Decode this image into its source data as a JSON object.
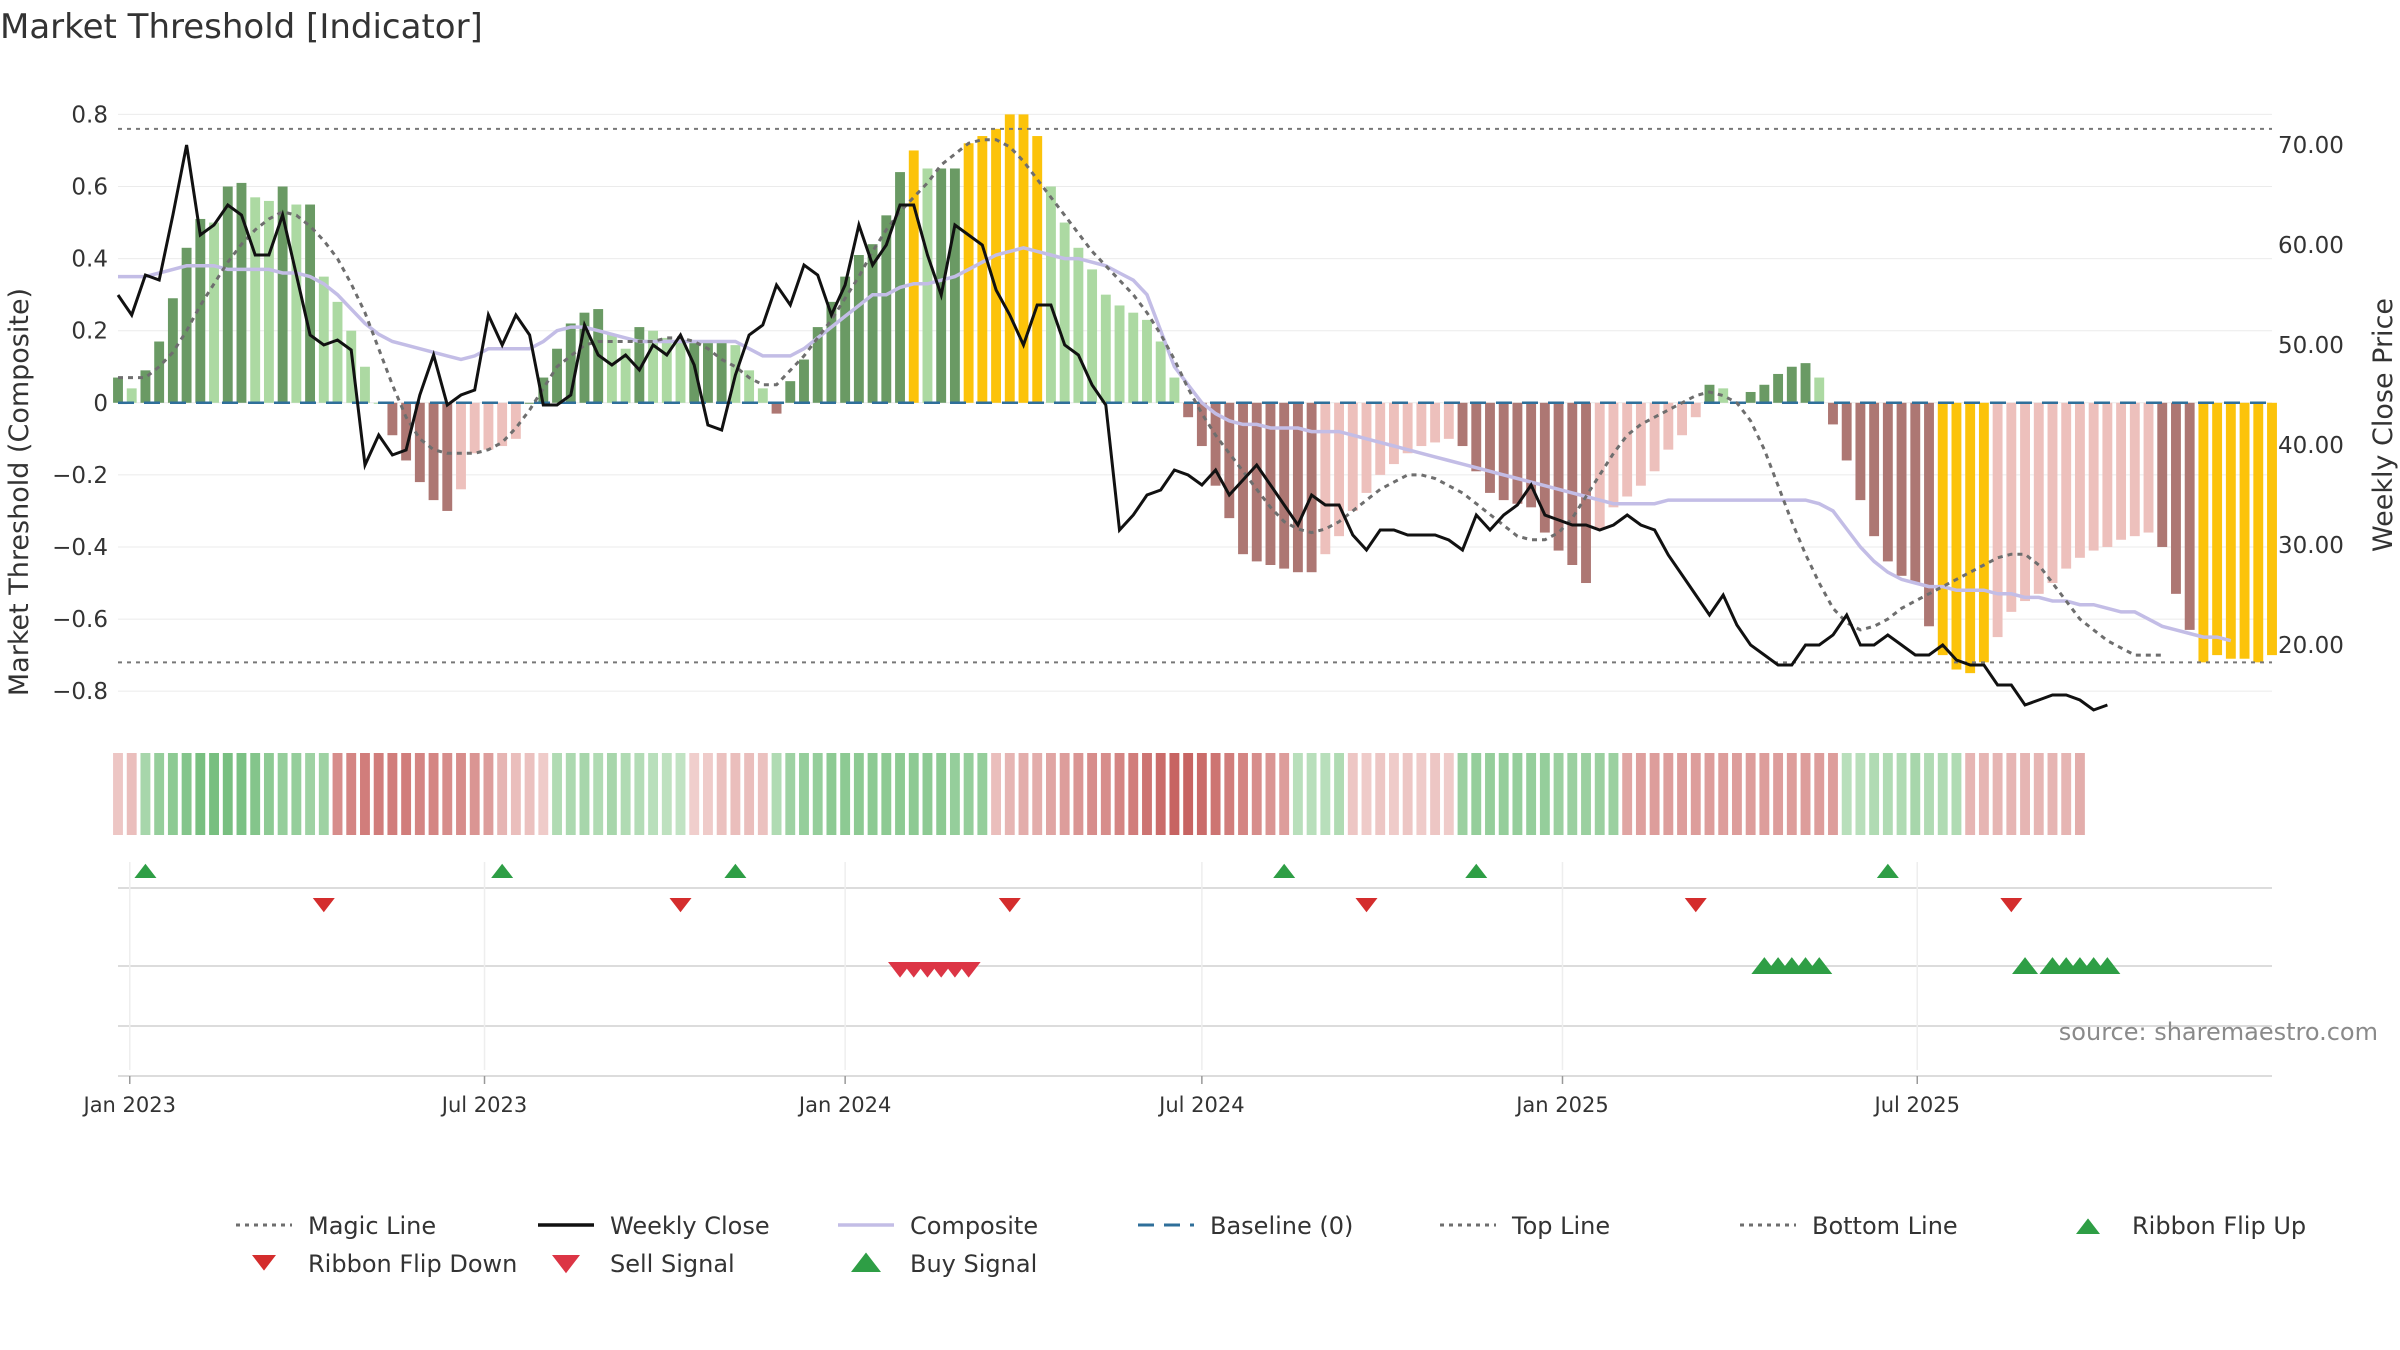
{
  "title": "Market Threshold [Indicator]",
  "source": "source: sharemaestro.com",
  "colors": {
    "bar_strong_green": "#6a9a64",
    "bar_light_green": "#acd9a2",
    "bar_strong_red": "#ad7773",
    "bar_light_red": "#edc0bc",
    "bar_extreme": "#fcc30a",
    "close_line": "#111111",
    "composite_line": "#c3bde6",
    "magic_line": "#6e6e6e",
    "baseline": "#2f6f9a",
    "buy": "#2e9e45",
    "sell": "#dc3545"
  },
  "legend": [
    {
      "label": "Magic Line",
      "icon": "dotted-line"
    },
    {
      "label": "Weekly Close",
      "icon": "solid-line"
    },
    {
      "label": "Composite",
      "icon": "lavender-line"
    },
    {
      "label": "Baseline (0)",
      "icon": "dashed-line"
    },
    {
      "label": "Top Line",
      "icon": "dotted-line"
    },
    {
      "label": "Bottom Line",
      "icon": "dotted-line"
    },
    {
      "label": "Ribbon Flip Up",
      "icon": "triangle-up-icon"
    },
    {
      "label": "Ribbon Flip Down",
      "icon": "triangle-down-icon"
    },
    {
      "label": "Sell Signal",
      "icon": "triangle-down-icon"
    },
    {
      "label": "Buy Signal",
      "icon": "triangle-up-icon"
    }
  ],
  "chart_data": {
    "type": "bar",
    "x_start": "2022-12-26",
    "x_step_days": 7,
    "x_ticks": [
      "Jan 2023",
      "Jul 2023",
      "Jan 2024",
      "Jul 2024",
      "Jan 2025",
      "Jul 2025"
    ],
    "x_tick_dates": [
      "2023-01-01",
      "2023-07-01",
      "2024-01-01",
      "2024-07-01",
      "2025-01-01",
      "2025-07-01"
    ],
    "y_left": {
      "label": "Market Threshold (Composite)",
      "range": [
        -0.88,
        0.84
      ],
      "ticks": [
        0.8,
        0.6,
        0.4,
        0.2,
        0,
        -0.2,
        -0.4,
        -0.6,
        -0.8
      ],
      "tick_labels": [
        "0.8",
        "0.6",
        "0.4",
        "0.2",
        "0",
        "−0.2",
        "−0.4",
        "−0.6",
        "−0.8"
      ]
    },
    "y_right": {
      "label": "Weekly Close Price",
      "range": [
        12.5,
        74.5
      ],
      "ticks": [
        70,
        60,
        50,
        40,
        30,
        20
      ],
      "tick_labels": [
        "70.00",
        "60.00",
        "50.00",
        "40.00",
        "30.00",
        "20.00"
      ]
    },
    "top_line": 0.76,
    "bottom_line": -0.72,
    "series": [
      {
        "name": "Market Threshold",
        "values": [
          0.07,
          0.04,
          0.09,
          0.17,
          0.29,
          0.43,
          0.51,
          0.5,
          0.6,
          0.61,
          0.57,
          0.56,
          0.6,
          0.55,
          0.55,
          0.35,
          0.28,
          0.2,
          0.1,
          0,
          -0.09,
          -0.16,
          -0.22,
          -0.27,
          -0.3,
          -0.24,
          -0.14,
          -0.13,
          -0.12,
          -0.1,
          0,
          0.07,
          0.15,
          0.22,
          0.25,
          0.26,
          0.19,
          0.15,
          0.21,
          0.2,
          0.18,
          0.17,
          0.17,
          0.17,
          0.17,
          0.16,
          0.09,
          0.04,
          -0.03,
          0.06,
          0.12,
          0.21,
          0.28,
          0.35,
          0.41,
          0.44,
          0.52,
          0.64,
          0.7,
          0.65,
          0.65,
          0.65,
          0.72,
          0.74,
          0.76,
          0.8,
          0.8,
          0.74,
          0.6,
          0.5,
          0.43,
          0.37,
          0.3,
          0.27,
          0.25,
          0.23,
          0.17,
          0.07,
          -0.04,
          -0.12,
          -0.23,
          -0.32,
          -0.42,
          -0.44,
          -0.45,
          -0.46,
          -0.47,
          -0.47,
          -0.42,
          -0.37,
          -0.3,
          -0.25,
          -0.2,
          -0.17,
          -0.14,
          -0.12,
          -0.11,
          -0.1,
          -0.12,
          -0.19,
          -0.25,
          -0.27,
          -0.28,
          -0.29,
          -0.36,
          -0.41,
          -0.45,
          -0.5,
          -0.35,
          -0.29,
          -0.26,
          -0.23,
          -0.19,
          -0.13,
          -0.09,
          -0.04,
          0.05,
          0.04,
          0,
          0.03,
          0.05,
          0.08,
          0.1,
          0.11,
          0.07,
          -0.06,
          -0.16,
          -0.27,
          -0.37,
          -0.44,
          -0.48,
          -0.5,
          -0.62,
          -0.7,
          -0.74,
          -0.75,
          -0.72,
          -0.65,
          -0.58,
          -0.55,
          -0.53,
          -0.5,
          -0.46,
          -0.43,
          -0.41,
          -0.4,
          -0.38,
          -0.37,
          -0.36,
          -0.4,
          -0.53,
          -0.63,
          -0.72,
          -0.7,
          -0.71,
          -0.71,
          -0.72,
          -0.7
        ]
      },
      {
        "name": "Weekly Close",
        "values": [
          55,
          53,
          57,
          56.5,
          63,
          70,
          61,
          62,
          64,
          63,
          59,
          59,
          63,
          57,
          51,
          50,
          50.5,
          49.5,
          38,
          41,
          39,
          39.5,
          45,
          49,
          44,
          45,
          45.5,
          53,
          50,
          53,
          51,
          44,
          44,
          45,
          52,
          49,
          48,
          49,
          47.5,
          50,
          49,
          51,
          48,
          42,
          41.5,
          47,
          51,
          52,
          56,
          54,
          58,
          57,
          53,
          56,
          62,
          58,
          60,
          64,
          64,
          59,
          55,
          62,
          61,
          60,
          55.5,
          53,
          50,
          54,
          54,
          50,
          49,
          46,
          44,
          31.5,
          33,
          35,
          35.5,
          37.5,
          37,
          36,
          37.5,
          35,
          36.5,
          38,
          36,
          34,
          32,
          35,
          34,
          34,
          31,
          29.5,
          31.5,
          31.5,
          31,
          31,
          31,
          30.5,
          29.5,
          33,
          31.5,
          33,
          34,
          36,
          33,
          32.5,
          32,
          32,
          31.5,
          32,
          33,
          32,
          31.5,
          29,
          27,
          25,
          23,
          25,
          22,
          20,
          19,
          18,
          18,
          20,
          20,
          21,
          23,
          20,
          20,
          21,
          20,
          19,
          19,
          20,
          18.5,
          18,
          18,
          16,
          16,
          14,
          14.5,
          15,
          15,
          14.5,
          13.5,
          14
        ]
      },
      {
        "name": "Composite",
        "values": [
          0.35,
          0.35,
          0.35,
          0.36,
          0.37,
          0.38,
          0.38,
          0.38,
          0.37,
          0.37,
          0.37,
          0.37,
          0.36,
          0.36,
          0.35,
          0.33,
          0.3,
          0.26,
          0.22,
          0.19,
          0.17,
          0.16,
          0.15,
          0.14,
          0.13,
          0.12,
          0.13,
          0.15,
          0.15,
          0.15,
          0.15,
          0.17,
          0.2,
          0.21,
          0.21,
          0.2,
          0.19,
          0.18,
          0.17,
          0.17,
          0.17,
          0.17,
          0.17,
          0.17,
          0.17,
          0.17,
          0.15,
          0.13,
          0.13,
          0.13,
          0.15,
          0.18,
          0.21,
          0.24,
          0.27,
          0.3,
          0.3,
          0.32,
          0.33,
          0.33,
          0.34,
          0.35,
          0.37,
          0.39,
          0.41,
          0.42,
          0.43,
          0.42,
          0.41,
          0.4,
          0.4,
          0.39,
          0.38,
          0.36,
          0.34,
          0.3,
          0.2,
          0.1,
          0.05,
          0.0,
          -0.03,
          -0.05,
          -0.06,
          -0.06,
          -0.07,
          -0.07,
          -0.07,
          -0.08,
          -0.08,
          -0.08,
          -0.09,
          -0.1,
          -0.11,
          -0.12,
          -0.13,
          -0.14,
          -0.15,
          -0.16,
          -0.17,
          -0.18,
          -0.19,
          -0.2,
          -0.21,
          -0.22,
          -0.23,
          -0.24,
          -0.25,
          -0.26,
          -0.27,
          -0.28,
          -0.28,
          -0.28,
          -0.28,
          -0.27,
          -0.27,
          -0.27,
          -0.27,
          -0.27,
          -0.27,
          -0.27,
          -0.27,
          -0.27,
          -0.27,
          -0.27,
          -0.28,
          -0.3,
          -0.35,
          -0.4,
          -0.44,
          -0.47,
          -0.49,
          -0.5,
          -0.51,
          -0.51,
          -0.52,
          -0.52,
          -0.52,
          -0.53,
          -0.53,
          -0.54,
          -0.54,
          -0.55,
          -0.55,
          -0.56,
          -0.56,
          -0.57,
          -0.58,
          -0.58,
          -0.6,
          -0.62,
          -0.63,
          -0.64,
          -0.65,
          -0.65,
          -0.66
        ]
      },
      {
        "name": "Magic Line",
        "values": [
          0.07,
          0.07,
          0.07,
          0.1,
          0.14,
          0.2,
          0.27,
          0.33,
          0.39,
          0.44,
          0.48,
          0.51,
          0.53,
          0.52,
          0.49,
          0.45,
          0.4,
          0.33,
          0.25,
          0.15,
          0.05,
          -0.04,
          -0.1,
          -0.13,
          -0.14,
          -0.14,
          -0.14,
          -0.13,
          -0.11,
          -0.07,
          -0.02,
          0.04,
          0.1,
          0.13,
          0.16,
          0.17,
          0.17,
          0.17,
          0.17,
          0.17,
          0.18,
          0.18,
          0.17,
          0.15,
          0.12,
          0.1,
          0.07,
          0.05,
          0.05,
          0.09,
          0.13,
          0.18,
          0.23,
          0.29,
          0.35,
          0.42,
          0.48,
          0.53,
          0.57,
          0.61,
          0.66,
          0.69,
          0.72,
          0.73,
          0.73,
          0.71,
          0.67,
          0.62,
          0.57,
          0.52,
          0.47,
          0.42,
          0.38,
          0.34,
          0.3,
          0.25,
          0.19,
          0.12,
          0.04,
          -0.03,
          -0.09,
          -0.14,
          -0.19,
          -0.24,
          -0.29,
          -0.33,
          -0.35,
          -0.36,
          -0.35,
          -0.33,
          -0.3,
          -0.27,
          -0.24,
          -0.22,
          -0.2,
          -0.2,
          -0.21,
          -0.23,
          -0.25,
          -0.28,
          -0.31,
          -0.34,
          -0.37,
          -0.38,
          -0.38,
          -0.36,
          -0.32,
          -0.26,
          -0.2,
          -0.14,
          -0.09,
          -0.06,
          -0.04,
          -0.02,
          0.0,
          0.02,
          0.03,
          0.02,
          0.0,
          -0.05,
          -0.13,
          -0.23,
          -0.33,
          -0.42,
          -0.5,
          -0.57,
          -0.61,
          -0.63,
          -0.62,
          -0.6,
          -0.57,
          -0.55,
          -0.53,
          -0.51,
          -0.49,
          -0.47,
          -0.45,
          -0.43,
          -0.42,
          -0.42,
          -0.45,
          -0.5,
          -0.55,
          -0.6,
          -0.63,
          -0.66,
          -0.68,
          -0.7,
          -0.7,
          -0.7
        ]
      },
      {
        "name": "Ribbon",
        "values": [
          -0.15,
          -0.2,
          0.35,
          0.45,
          0.5,
          0.55,
          0.62,
          0.62,
          0.62,
          0.6,
          0.55,
          0.5,
          0.45,
          0.45,
          0.4,
          0.4,
          -0.5,
          -0.55,
          -0.6,
          -0.6,
          -0.6,
          -0.6,
          -0.55,
          -0.55,
          -0.5,
          -0.5,
          -0.45,
          -0.4,
          -0.25,
          -0.2,
          -0.18,
          -0.12,
          0.3,
          0.32,
          0.35,
          0.3,
          0.35,
          0.3,
          0.28,
          0.25,
          0.22,
          0.2,
          -0.1,
          -0.12,
          -0.18,
          -0.2,
          -0.2,
          -0.18,
          0.3,
          0.4,
          0.45,
          0.45,
          0.5,
          0.5,
          0.5,
          0.5,
          0.5,
          0.5,
          0.5,
          0.5,
          0.5,
          0.45,
          0.45,
          0.45,
          -0.2,
          -0.25,
          -0.3,
          -0.3,
          -0.35,
          -0.4,
          -0.45,
          -0.5,
          -0.5,
          -0.55,
          -0.6,
          -0.65,
          -0.7,
          -0.75,
          -0.75,
          -0.7,
          -0.65,
          -0.6,
          -0.55,
          -0.5,
          -0.45,
          -0.4,
          0.25,
          0.25,
          0.25,
          0.3,
          -0.15,
          -0.12,
          -0.15,
          -0.12,
          -0.15,
          -0.12,
          -0.15,
          -0.12,
          0.42,
          0.45,
          0.45,
          0.45,
          0.45,
          0.45,
          0.45,
          0.42,
          0.42,
          0.42,
          0.42,
          0.42,
          -0.35,
          -0.38,
          -0.4,
          -0.4,
          -0.4,
          -0.4,
          -0.4,
          -0.4,
          -0.4,
          -0.4,
          -0.4,
          -0.4,
          -0.4,
          -0.4,
          -0.4,
          -0.4,
          0.25,
          0.25,
          0.3,
          0.3,
          0.3,
          0.35,
          0.3,
          0.3,
          0.3,
          -0.25,
          -0.25,
          -0.25,
          -0.25,
          -0.25,
          -0.25,
          -0.25,
          -0.25,
          -0.3
        ]
      }
    ],
    "ribbon_flip_up_dates": [
      "2023-01-09",
      "2023-07-10",
      "2023-11-06",
      "2024-08-12",
      "2024-11-18",
      "2025-06-16"
    ],
    "ribbon_flip_down_dates": [
      "2023-04-10",
      "2023-10-09",
      "2024-03-25",
      "2024-09-23",
      "2025-03-10",
      "2025-08-18"
    ],
    "sell_signal_dates": [
      "2024-01-29",
      "2024-02-05",
      "2024-02-12",
      "2024-02-19",
      "2024-02-26",
      "2024-03-04"
    ],
    "buy_signal_dates": [
      "2025-04-14",
      "2025-04-21",
      "2025-04-28",
      "2025-05-05",
      "2025-05-12",
      "2025-08-25",
      "2025-09-08",
      "2025-09-15",
      "2025-09-22",
      "2025-09-29",
      "2025-10-06"
    ]
  }
}
